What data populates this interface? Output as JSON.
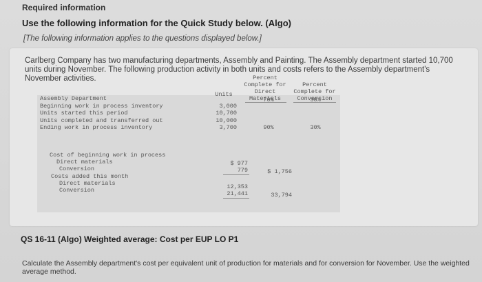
{
  "header": {
    "required": "Required information",
    "use": "Use the following information for the Quick Study below. (Algo)",
    "note": "[The following information applies to the questions displayed below.]"
  },
  "intro": "Carlberg Company has two manufacturing departments, Assembly and Painting. The Assembly department started 10,700 units during November. The following production activity in both units and costs refers to the Assembly department's November activities.",
  "table": {
    "col_units": "Units",
    "col_materials": [
      "Percent",
      "Complete for",
      "Direct",
      "Materials"
    ],
    "col_conversion": [
      "Percent",
      "Complete for",
      "Conversion"
    ],
    "rows": [
      {
        "label": "Assembly Department",
        "units": "",
        "materials": "",
        "conversion": ""
      },
      {
        "label": "Beginning work in process inventory",
        "units": "3,000",
        "materials": "70%",
        "conversion": "30%"
      },
      {
        "label": "Units started this period",
        "units": "10,700",
        "materials": "",
        "conversion": ""
      },
      {
        "label": "Units completed and transferred out",
        "units": "10,000",
        "materials": "",
        "conversion": ""
      },
      {
        "label": "Ending work in process inventory",
        "units": "3,700",
        "materials": "90%",
        "conversion": "30%"
      }
    ],
    "cost": {
      "beg_label": "Cost of beginning work in process",
      "beg_dm_label": "Direct materials",
      "beg_dm": "$ 977",
      "beg_conv_label": "Conversion",
      "beg_conv": "779",
      "beg_total": "$ 1,756",
      "added_label": "Costs added this month",
      "add_dm_label": "Direct materials",
      "add_dm": "12,353",
      "add_conv_label": "Conversion",
      "add_conv": "21,441",
      "add_total": "33,794"
    }
  },
  "question": {
    "title": "QS 16-11 (Algo) Weighted average: Cost per EUP LO P1",
    "text": "Calculate the Assembly department's cost per equivalent unit of production for materials and for conversion for November. Use the weighted average method."
  }
}
